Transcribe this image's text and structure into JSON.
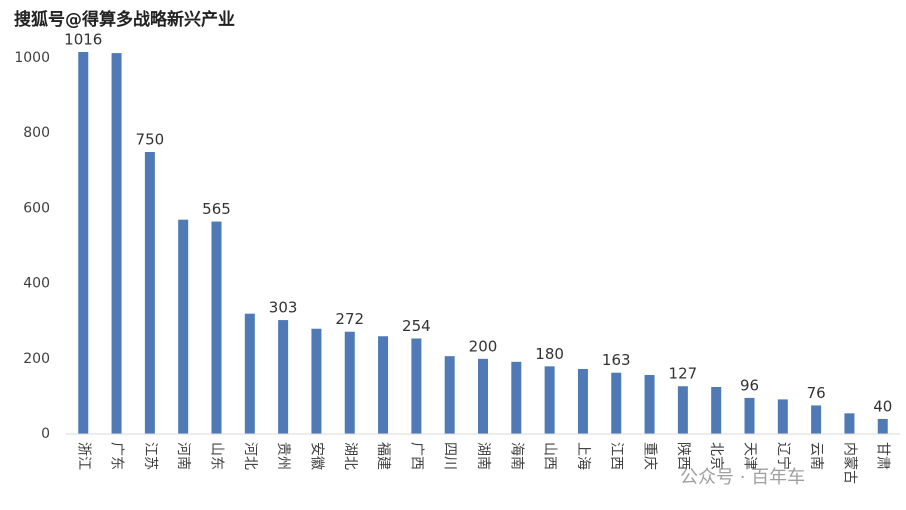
{
  "chart_data": {
    "type": "bar",
    "annotations": [
      "搜狐号@得算多战略新兴产业",
      "公众号 · 百年车"
    ],
    "categories": [
      "浙江",
      "广东",
      "江苏",
      "河南",
      "山东",
      "河北",
      "贵州",
      "安徽",
      "湖北",
      "福建",
      "广西",
      "四川",
      "湖南",
      "海南",
      "山西",
      "上海",
      "江西",
      "重庆",
      "陕西",
      "北京",
      "天津",
      "辽宁",
      "云南",
      "内蒙古",
      "甘肃"
    ],
    "values": [
      1016,
      1013,
      750,
      570,
      565,
      320,
      303,
      280,
      272,
      260,
      254,
      207,
      200,
      192,
      180,
      173,
      163,
      157,
      127,
      125,
      96,
      92,
      76,
      55,
      40
    ],
    "value_labels": [
      "1016",
      null,
      "750",
      null,
      "565",
      null,
      "303",
      null,
      "272",
      null,
      "254",
      null,
      "200",
      null,
      "180",
      null,
      "163",
      null,
      "127",
      null,
      "96",
      null,
      "76",
      null,
      "40"
    ],
    "color": "#4f7ab6",
    "ylim": [
      0,
      1000
    ],
    "yticks": [
      0,
      200,
      400,
      600,
      800,
      1000
    ],
    "grid": false
  }
}
